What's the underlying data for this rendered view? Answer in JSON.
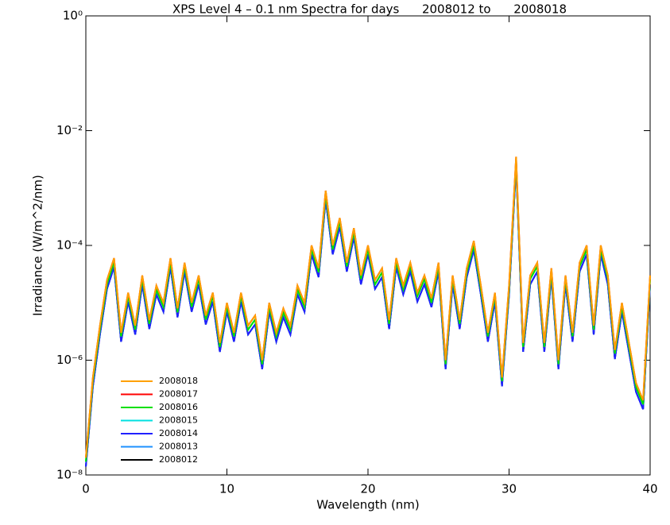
{
  "chart_data": {
    "type": "line",
    "title": "XPS Level 4 – 0.1 nm Spectra for days      2008012 to      2008018",
    "x_label": "Wavelength (nm)",
    "y_label": "Irradiance (W/m^2/nm)",
    "log_y": true,
    "legend": "lower left",
    "xlim": [
      0,
      40
    ],
    "xticks": [
      0,
      10,
      20,
      30,
      40
    ],
    "ylim": [
      1e-08,
      1
    ],
    "yticks": [
      {
        "value": 1e-08,
        "label": "10⁻⁸"
      },
      {
        "value": 1e-06,
        "label": "10⁻⁶"
      },
      {
        "value": 0.0001,
        "label": "10⁻⁴"
      },
      {
        "value": 0.01,
        "label": "10⁻²"
      },
      {
        "value": 1,
        "label": "10⁰"
      }
    ],
    "x": [
      0,
      0.5,
      1,
      1.5,
      2,
      2.5,
      3,
      3.5,
      4,
      4.5,
      5,
      5.5,
      6,
      6.5,
      7,
      7.5,
      8,
      8.5,
      9,
      9.5,
      10,
      10.5,
      11,
      11.5,
      12,
      12.5,
      13,
      13.5,
      14,
      14.5,
      15,
      15.5,
      16,
      16.5,
      17,
      17.5,
      18,
      18.5,
      19,
      19.5,
      20,
      20.5,
      21,
      21.5,
      22,
      22.5,
      23,
      23.5,
      24,
      24.5,
      25,
      25.5,
      26,
      26.5,
      27,
      27.5,
      28,
      28.5,
      29,
      29.5,
      30,
      30.5,
      31,
      31.5,
      32,
      32.5,
      33,
      33.5,
      34,
      34.5,
      35,
      35.5,
      36,
      36.5,
      37,
      37.5,
      38,
      38.5,
      39,
      39.5,
      40
    ],
    "series": [
      {
        "name": "2008018",
        "color": "#ffa000",
        "values": [
          2e-08,
          5e-07,
          4e-06,
          2.5e-05,
          6e-05,
          3e-06,
          1.5e-05,
          4e-06,
          3e-05,
          5e-06,
          2e-05,
          1e-05,
          6e-05,
          8e-06,
          5e-05,
          1e-05,
          3e-05,
          6e-06,
          1.5e-05,
          2e-06,
          1e-05,
          3e-06,
          1.5e-05,
          4e-06,
          6e-06,
          1e-06,
          1e-05,
          3e-06,
          8e-06,
          4e-06,
          2e-05,
          1e-05,
          0.0001,
          4e-05,
          0.0009,
          0.0001,
          0.0003,
          5e-05,
          0.0002,
          3e-05,
          0.0001,
          2.5e-05,
          4e-05,
          5e-06,
          6e-05,
          2e-05,
          5e-05,
          1.5e-05,
          3e-05,
          1.2e-05,
          5e-05,
          1e-06,
          3e-05,
          5e-06,
          4e-05,
          0.00012,
          2e-05,
          3e-06,
          1.5e-05,
          5e-07,
          2e-05,
          0.0035,
          2e-06,
          3e-05,
          5e-05,
          2e-06,
          4e-05,
          1e-06,
          3e-05,
          3e-06,
          5e-05,
          0.0001,
          4e-06,
          0.0001,
          3e-05,
          1.5e-06,
          1e-05,
          2e-06,
          4e-07,
          2e-07,
          3e-05
        ]
      },
      {
        "name": "2008017",
        "color": "#ff0000",
        "values": [
          2e-08,
          5e-07,
          4e-06,
          2.5e-05,
          6e-05,
          3e-06,
          1.5e-05,
          4e-06,
          3e-05,
          5e-06,
          2e-05,
          1e-05,
          6e-05,
          8e-06,
          5e-05,
          1e-05,
          3e-05,
          6e-06,
          1.5e-05,
          2e-06,
          1e-05,
          3e-06,
          1.5e-05,
          4e-06,
          6e-06,
          1e-06,
          1e-05,
          3e-06,
          8e-06,
          4e-06,
          2e-05,
          1e-05,
          0.0001,
          4e-05,
          0.0009,
          0.0001,
          0.0003,
          5e-05,
          0.0002,
          3e-05,
          0.0001,
          2.5e-05,
          4e-05,
          5e-06,
          6e-05,
          2e-05,
          5e-05,
          1.5e-05,
          3e-05,
          1.2e-05,
          5e-05,
          1e-06,
          3e-05,
          5e-06,
          4e-05,
          0.00012,
          2e-05,
          3e-06,
          1.5e-05,
          5e-07,
          2e-05,
          0.0035,
          2e-06,
          3e-05,
          5e-05,
          2e-06,
          4e-05,
          1e-06,
          3e-05,
          3e-06,
          5e-05,
          0.0001,
          4e-06,
          0.0001,
          3e-05,
          1.5e-06,
          1e-05,
          2e-06,
          4e-07,
          2e-07,
          3e-05
        ]
      },
      {
        "name": "2008016",
        "color": "#00e000",
        "values": [
          1.7e-08,
          4.3e-07,
          3.4e-06,
          2.1e-05,
          5.1e-05,
          2.6e-06,
          1.3e-05,
          3.4e-06,
          2.6e-05,
          4.3e-06,
          1.7e-05,
          8.5e-06,
          5.1e-05,
          6.8e-06,
          4.3e-05,
          8.5e-06,
          2.6e-05,
          5.1e-06,
          1.3e-05,
          1.7e-06,
          8.5e-06,
          2.6e-06,
          1.3e-05,
          3.4e-06,
          5.1e-06,
          8.5e-07,
          8.5e-06,
          2.6e-06,
          6.8e-06,
          3.4e-06,
          1.7e-05,
          8.5e-06,
          8.5e-05,
          3.4e-05,
          0.00077,
          8.5e-05,
          0.00026,
          4.3e-05,
          0.00017,
          2.6e-05,
          8.5e-05,
          2.1e-05,
          3.4e-05,
          4.3e-06,
          5.1e-05,
          1.7e-05,
          4.3e-05,
          1.3e-05,
          2.6e-05,
          1e-05,
          4.3e-05,
          8.5e-07,
          2.6e-05,
          4.3e-06,
          3.4e-05,
          0.0001,
          1.7e-05,
          2.6e-06,
          1.3e-05,
          4.3e-07,
          1.7e-05,
          0.003,
          1.7e-06,
          2.6e-05,
          4.3e-05,
          1.7e-06,
          3.4e-05,
          8.5e-07,
          2.6e-05,
          2.6e-06,
          4.3e-05,
          8.5e-05,
          3.4e-06,
          8.5e-05,
          2.6e-05,
          1.3e-06,
          8.5e-06,
          1.7e-06,
          3.4e-07,
          1.7e-07,
          2.6e-05
        ]
      },
      {
        "name": "2008015",
        "color": "#00e0e0",
        "values": [
          1.7e-08,
          4.3e-07,
          3.4e-06,
          2.1e-05,
          5.1e-05,
          2.6e-06,
          1.3e-05,
          3.4e-06,
          2.6e-05,
          4.3e-06,
          1.7e-05,
          8.5e-06,
          5.1e-05,
          6.8e-06,
          4.3e-05,
          8.5e-06,
          2.6e-05,
          5.1e-06,
          1.3e-05,
          1.7e-06,
          8.5e-06,
          2.6e-06,
          1.3e-05,
          3.4e-06,
          5.1e-06,
          8.5e-07,
          8.5e-06,
          2.6e-06,
          6.8e-06,
          3.4e-06,
          1.7e-05,
          8.5e-06,
          8.5e-05,
          3.4e-05,
          0.00077,
          8.5e-05,
          0.00026,
          4.3e-05,
          0.00017,
          2.6e-05,
          8.5e-05,
          2.1e-05,
          3.4e-05,
          4.3e-06,
          5.1e-05,
          1.7e-05,
          4.3e-05,
          1.3e-05,
          2.6e-05,
          1e-05,
          4.3e-05,
          8.5e-07,
          2.6e-05,
          4.3e-06,
          3.4e-05,
          0.0001,
          1.7e-05,
          2.6e-06,
          1.3e-05,
          4.3e-07,
          1.7e-05,
          0.003,
          1.7e-06,
          2.6e-05,
          4.3e-05,
          1.7e-06,
          3.4e-05,
          8.5e-07,
          2.6e-05,
          2.6e-06,
          4.3e-05,
          8.5e-05,
          3.4e-06,
          8.5e-05,
          2.6e-05,
          1.3e-06,
          8.5e-06,
          1.7e-06,
          3.4e-07,
          1.7e-07,
          2.6e-05
        ]
      },
      {
        "name": "2008014",
        "color": "#2020ff",
        "values": [
          1.4e-08,
          3.5e-07,
          2.8e-06,
          1.75e-05,
          4.2e-05,
          2.1e-06,
          1.05e-05,
          2.8e-06,
          2.1e-05,
          3.5e-06,
          1.4e-05,
          7e-06,
          4.2e-05,
          5.6e-06,
          3.5e-05,
          7e-06,
          2.1e-05,
          4.2e-06,
          1.05e-05,
          1.4e-06,
          7e-06,
          2.1e-06,
          1.05e-05,
          2.8e-06,
          4.2e-06,
          7e-07,
          7e-06,
          2.1e-06,
          5.6e-06,
          2.8e-06,
          1.4e-05,
          7e-06,
          7e-05,
          2.8e-05,
          0.00063,
          7e-05,
          0.00021,
          3.5e-05,
          0.00014,
          2.1e-05,
          7e-05,
          1.75e-05,
          2.8e-05,
          3.5e-06,
          4.2e-05,
          1.4e-05,
          3.5e-05,
          1.05e-05,
          2.1e-05,
          8.4e-06,
          3.5e-05,
          7e-07,
          2.1e-05,
          3.5e-06,
          2.8e-05,
          8.4e-05,
          1.4e-05,
          2.1e-06,
          1.05e-05,
          3.5e-07,
          1.4e-05,
          0.00245,
          1.4e-06,
          2.1e-05,
          3.5e-05,
          1.4e-06,
          2.8e-05,
          7e-07,
          2.1e-05,
          2.1e-06,
          3.5e-05,
          7e-05,
          2.8e-06,
          7e-05,
          2.1e-05,
          1.05e-06,
          7e-06,
          1.4e-06,
          2.8e-07,
          1.4e-07,
          2.1e-05
        ]
      },
      {
        "name": "2008013",
        "color": "#1e90ff",
        "values": [
          1.4e-08,
          3.5e-07,
          2.8e-06,
          1.75e-05,
          4.2e-05,
          2.1e-06,
          1.05e-05,
          2.8e-06,
          2.1e-05,
          3.5e-06,
          1.4e-05,
          7e-06,
          4.2e-05,
          5.6e-06,
          3.5e-05,
          7e-06,
          2.1e-05,
          4.2e-06,
          1.05e-05,
          1.4e-06,
          7e-06,
          2.1e-06,
          1.05e-05,
          2.8e-06,
          4.2e-06,
          7e-07,
          7e-06,
          2.1e-06,
          5.6e-06,
          2.8e-06,
          1.4e-05,
          7e-06,
          7e-05,
          2.8e-05,
          0.00063,
          7e-05,
          0.00021,
          3.5e-05,
          0.00014,
          2.1e-05,
          7e-05,
          1.75e-05,
          2.8e-05,
          3.5e-06,
          4.2e-05,
          1.4e-05,
          3.5e-05,
          1.05e-05,
          2.1e-05,
          8.4e-06,
          3.5e-05,
          7e-07,
          2.1e-05,
          3.5e-06,
          2.8e-05,
          8.4e-05,
          1.4e-05,
          2.1e-06,
          1.05e-05,
          3.5e-07,
          1.4e-05,
          0.00245,
          1.4e-06,
          2.1e-05,
          3.5e-05,
          1.4e-06,
          2.8e-05,
          7e-07,
          2.1e-05,
          2.1e-06,
          3.5e-05,
          7e-05,
          2.8e-06,
          7e-05,
          2.1e-05,
          1.05e-06,
          7e-06,
          1.4e-06,
          2.8e-07,
          1.4e-07,
          2.1e-05
        ]
      },
      {
        "name": "2008012",
        "color": "#000000",
        "values": [
          1.4e-08,
          3.5e-07,
          2.8e-06,
          1.75e-05,
          4.2e-05,
          2.1e-06,
          1.05e-05,
          2.8e-06,
          2.1e-05,
          3.5e-06,
          1.4e-05,
          7e-06,
          4.2e-05,
          5.6e-06,
          3.5e-05,
          7e-06,
          2.1e-05,
          4.2e-06,
          1.05e-05,
          1.4e-06,
          7e-06,
          2.1e-06,
          1.05e-05,
          2.8e-06,
          4.2e-06,
          7e-07,
          7e-06,
          2.1e-06,
          5.6e-06,
          2.8e-06,
          1.4e-05,
          7e-06,
          7e-05,
          2.8e-05,
          0.00063,
          7e-05,
          0.00021,
          3.5e-05,
          0.00014,
          2.1e-05,
          7e-05,
          1.75e-05,
          2.8e-05,
          3.5e-06,
          4.2e-05,
          1.4e-05,
          3.5e-05,
          1.05e-05,
          2.1e-05,
          8.4e-06,
          3.5e-05,
          7e-07,
          2.1e-05,
          3.5e-06,
          2.8e-05,
          8.4e-05,
          1.4e-05,
          2.1e-06,
          1.05e-05,
          3.5e-07,
          1.4e-05,
          0.00245,
          1.4e-06,
          2.1e-05,
          3.5e-05,
          1.4e-06,
          2.8e-05,
          7e-07,
          2.1e-05,
          2.1e-06,
          3.5e-05,
          7e-05,
          2.8e-06,
          7e-05,
          2.1e-05,
          1.05e-06,
          7e-06,
          1.4e-06,
          2.8e-07,
          1.4e-07,
          2.1e-05
        ]
      }
    ]
  }
}
